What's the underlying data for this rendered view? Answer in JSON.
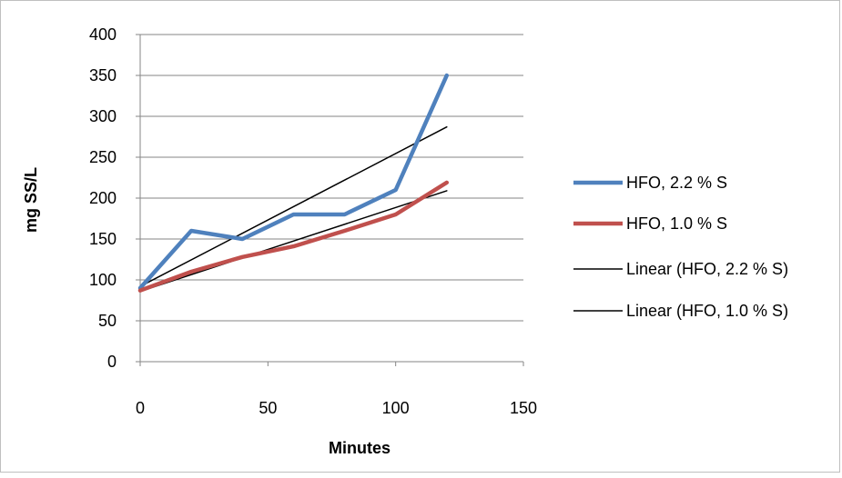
{
  "chart_data": {
    "type": "line",
    "title": "",
    "xlabel": "Minutes",
    "ylabel": "mg SS/L",
    "xlim": [
      0,
      150
    ],
    "ylim": [
      0,
      400
    ],
    "xticks": [
      0,
      50,
      100,
      150
    ],
    "yticks": [
      0,
      50,
      100,
      150,
      200,
      250,
      300,
      350,
      400
    ],
    "grid": "horizontal major gridlines",
    "legend_position": "right",
    "series": [
      {
        "name": "HFO, 2.2 % S",
        "color": "#4F81BD",
        "kind": "data",
        "x": [
          0,
          20,
          40,
          60,
          80,
          100,
          120
        ],
        "y": [
          90,
          160,
          150,
          180,
          180,
          210,
          350
        ]
      },
      {
        "name": "HFO, 1.0 % S",
        "color": "#C0504D",
        "kind": "data",
        "x": [
          0,
          20,
          40,
          60,
          80,
          100,
          120
        ],
        "y": [
          87,
          110,
          128,
          141,
          160,
          180,
          219
        ]
      },
      {
        "name": "Linear (HFO, 2.2 % S)",
        "color": "#000000",
        "kind": "trendline",
        "x": [
          0,
          120
        ],
        "y": [
          92,
          287
        ]
      },
      {
        "name": "Linear (HFO, 1.0 % S)",
        "color": "#000000",
        "kind": "trendline",
        "x": [
          0,
          120
        ],
        "y": [
          86,
          209
        ]
      }
    ]
  }
}
